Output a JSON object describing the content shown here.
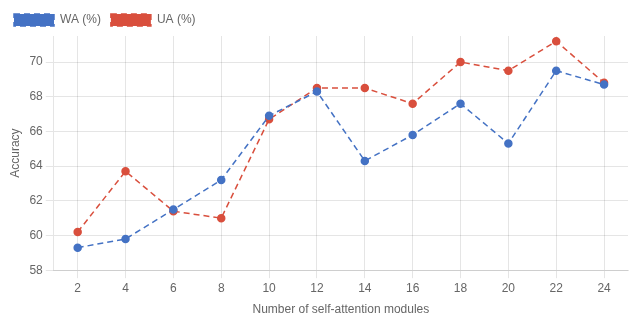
{
  "chart_data": {
    "type": "line",
    "x": [
      2,
      4,
      6,
      8,
      10,
      12,
      14,
      16,
      18,
      20,
      22,
      24
    ],
    "series": [
      {
        "name": "WA (%)",
        "color": "#4472C4",
        "values": [
          59.3,
          59.8,
          61.5,
          63.2,
          66.9,
          68.3,
          64.3,
          65.8,
          67.6,
          65.3,
          69.5,
          68.7
        ]
      },
      {
        "name": "UA (%)",
        "color": "#D94F3D",
        "values": [
          60.2,
          63.7,
          61.4,
          61.0,
          66.7,
          68.5,
          68.5,
          67.6,
          70.0,
          69.5,
          71.2,
          68.8
        ]
      }
    ],
    "x_label": "Number of self-attention modules",
    "y_label": "Accuracy",
    "xlim": [
      1,
      25
    ],
    "ylim": [
      58,
      71.5
    ],
    "xticks": [
      2,
      4,
      6,
      8,
      10,
      12,
      14,
      16,
      18,
      20,
      22,
      24
    ],
    "yticks": [
      58,
      60,
      62,
      64,
      66,
      68,
      70
    ],
    "grid": true,
    "legend": "upper left",
    "marker": "circle",
    "line_style": "dashed"
  }
}
